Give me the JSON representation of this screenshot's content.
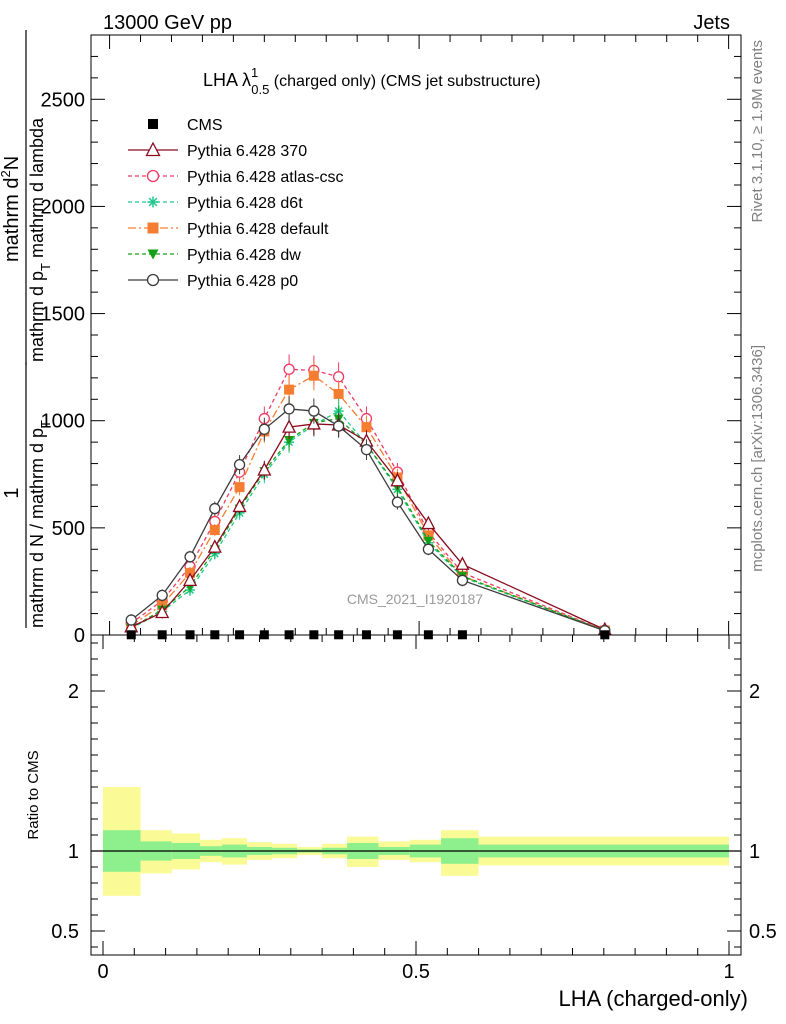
{
  "header": {
    "left": "13000 GeV pp",
    "right": "Jets"
  },
  "side_text": {
    "rivet": "Rivet 3.1.10, ≥ 1.9M events",
    "mcplots": "mcplots.cern.ch [arXiv:1306.3436]"
  },
  "watermark": "CMS_2021_I1920187",
  "title": {
    "prefix": "LHA λ",
    "sup": "1",
    "sub": "0.5",
    "rest": " (charged only) (CMS jet substructure)"
  },
  "ylabel_main": {
    "line1_num": "1",
    "line1_den": "mathrm d N / mathrm d p",
    "line1_den_sub": "T",
    "line2_num": "mathrm d",
    "line2_num_sup": "2",
    "line2_num_rest": "N",
    "line2_den": "mathrm d p",
    "line2_den_sub": "T",
    "line2_den_rest": " mathrm d lambda"
  },
  "ylabel_ratio": "Ratio to CMS",
  "xlabel": "LHA (charged-only)",
  "colors": {
    "p370": "#8b0a1e",
    "atlas": "#ee3b64",
    "d6t": "#1ec88c",
    "default": "#f57d32",
    "dw": "#14a014",
    "p0": "#3c3c3c",
    "band_inner": "#8df08d",
    "band_outer": "#fafa96"
  },
  "chart_data": {
    "type": "line",
    "main": {
      "xlim": [
        -0.03,
        1.02
      ],
      "ylim": [
        0,
        2800
      ],
      "y_ticks": [
        0,
        500,
        1000,
        1500,
        2000,
        2500
      ],
      "x_ticks": [
        0,
        0.5,
        1
      ],
      "x": [
        0.035,
        0.085,
        0.13,
        0.17,
        0.21,
        0.25,
        0.29,
        0.33,
        0.37,
        0.415,
        0.465,
        0.515,
        0.57,
        0.8
      ],
      "series": [
        {
          "name": "CMS",
          "key": "cms",
          "marker": "square",
          "x": [
            0.035,
            0.085,
            0.13,
            0.17,
            0.21,
            0.25,
            0.29,
            0.33,
            0.37,
            0.415,
            0.465,
            0.515,
            0.57,
            0.8
          ],
          "values": [
            1,
            1,
            1,
            1,
            1,
            1,
            1,
            1,
            1,
            1,
            1,
            1,
            1,
            1
          ]
        },
        {
          "name": "Pythia 6.428 370",
          "key": "p370",
          "marker": "triangle-open",
          "dash": "",
          "values": [
            38,
            105,
            255,
            410,
            600,
            770,
            970,
            985,
            980,
            905,
            720,
            520,
            330,
            25
          ]
        },
        {
          "name": "Pythia 6.428 atlas-csc",
          "key": "atlas",
          "marker": "circle-open",
          "dash": "4,3",
          "values": [
            55,
            160,
            320,
            530,
            760,
            1010,
            1240,
            1235,
            1205,
            1010,
            760,
            480,
            290,
            22
          ]
        },
        {
          "name": "Pythia 6.428 d6t",
          "key": "d6t",
          "marker": "star",
          "dash": "4,3",
          "values": [
            30,
            110,
            210,
            380,
            570,
            750,
            900,
            980,
            1045,
            890,
            680,
            430,
            270,
            20
          ]
        },
        {
          "name": "Pythia 6.428 default",
          "key": "default",
          "marker": "square",
          "dash": "8,3,2,3",
          "values": [
            45,
            140,
            290,
            490,
            690,
            950,
            1145,
            1210,
            1125,
            970,
            735,
            465,
            275,
            21
          ]
        },
        {
          "name": "Pythia 6.428 dw",
          "key": "dw",
          "marker": "triangle-down",
          "dash": "4,3",
          "values": [
            33,
            118,
            225,
            400,
            590,
            765,
            910,
            990,
            1010,
            890,
            690,
            440,
            275,
            20
          ]
        },
        {
          "name": "Pythia 6.428 p0",
          "key": "p0",
          "marker": "circle-open",
          "dash": "",
          "values": [
            70,
            185,
            365,
            590,
            795,
            960,
            1055,
            1045,
            975,
            865,
            620,
            400,
            255,
            20
          ]
        }
      ]
    },
    "ratio": {
      "ylim": [
        0.35,
        2.35
      ],
      "y_ticks": [
        0.5,
        1,
        2
      ],
      "reference": 1,
      "bin_edges": [
        0.0,
        0.06,
        0.11,
        0.155,
        0.19,
        0.23,
        0.27,
        0.31,
        0.35,
        0.39,
        0.44,
        0.49,
        0.54,
        0.6,
        1.0
      ],
      "inner_lo": [
        0.87,
        0.94,
        0.95,
        0.97,
        0.96,
        0.975,
        0.98,
        0.99,
        0.98,
        0.95,
        0.975,
        0.96,
        0.92,
        0.96
      ],
      "inner_hi": [
        1.13,
        1.06,
        1.05,
        1.03,
        1.04,
        1.025,
        1.02,
        1.01,
        1.02,
        1.05,
        1.025,
        1.04,
        1.08,
        1.04
      ],
      "outer_lo": [
        0.72,
        0.86,
        0.885,
        0.93,
        0.915,
        0.945,
        0.955,
        0.975,
        0.955,
        0.9,
        0.945,
        0.93,
        0.845,
        0.91
      ],
      "outer_hi": [
        1.4,
        1.13,
        1.11,
        1.07,
        1.08,
        1.055,
        1.045,
        1.025,
        1.045,
        1.09,
        1.06,
        1.07,
        1.13,
        1.09
      ]
    }
  }
}
